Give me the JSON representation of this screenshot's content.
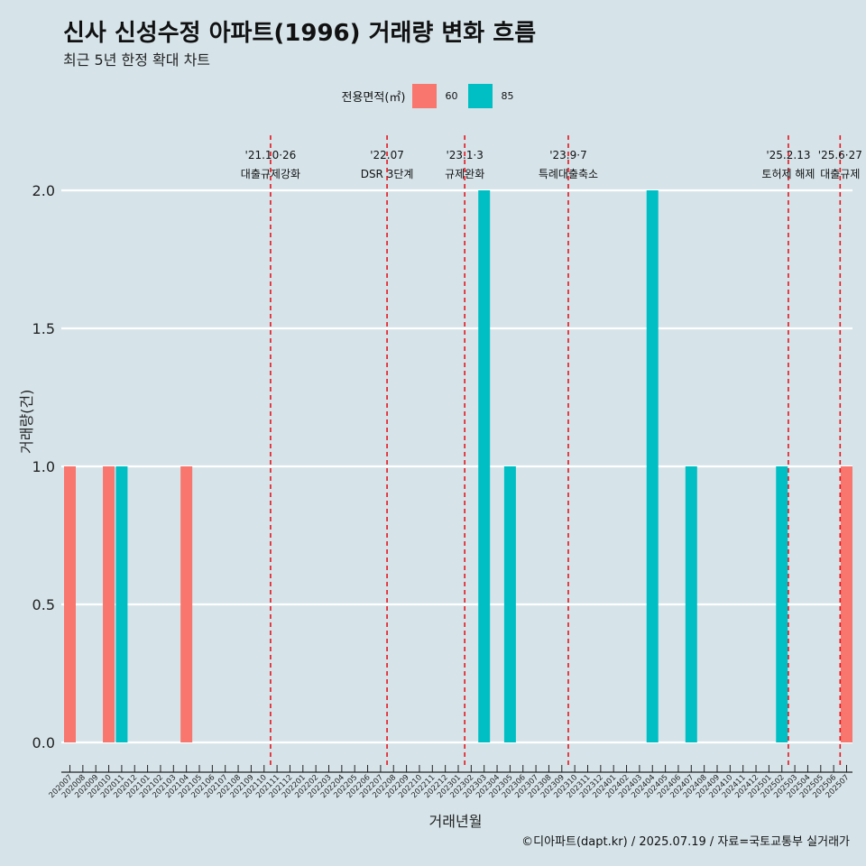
{
  "title": "신사 신성수정 아파트(1996) 거래량 변화 흐름",
  "subtitle": "최근 5년 한정 확대 차트",
  "legend": {
    "title": "전용면적(㎡)",
    "items": [
      {
        "label": "60",
        "color": "#f8766d"
      },
      {
        "label": "85",
        "color": "#00bfc4"
      }
    ]
  },
  "caption": "©디아파트(dapt.kr) / 2025.07.19 / 자료=국토교통부 실거래가",
  "chart_data": {
    "type": "bar",
    "title": "신사 신성수정 아파트(1996) 거래량 변화 흐름",
    "xlabel": "거래년월",
    "ylabel": "거래량(건)",
    "ylim": [
      0,
      2
    ],
    "yticks": [
      "0.0",
      "0.5",
      "1.0",
      "1.5",
      "2.0"
    ],
    "grid": true,
    "legend_position": "top",
    "categories": [
      "202007",
      "202008",
      "202009",
      "202010",
      "202011",
      "202012",
      "202101",
      "202102",
      "202103",
      "202104",
      "202105",
      "202106",
      "202107",
      "202108",
      "202109",
      "202110",
      "202111",
      "202112",
      "202201",
      "202202",
      "202203",
      "202204",
      "202205",
      "202206",
      "202207",
      "202208",
      "202209",
      "202210",
      "202211",
      "202212",
      "202301",
      "202302",
      "202303",
      "202304",
      "202305",
      "202306",
      "202307",
      "202308",
      "202309",
      "202310",
      "202311",
      "202312",
      "202401",
      "202402",
      "202403",
      "202404",
      "202405",
      "202406",
      "202407",
      "202408",
      "202409",
      "202410",
      "202411",
      "202412",
      "202501",
      "202502",
      "202503",
      "202504",
      "202505",
      "202506",
      "202507"
    ],
    "series": [
      {
        "name": "60",
        "color": "#f8766d",
        "points": [
          {
            "x": "202007",
            "y": 1
          },
          {
            "x": "202010",
            "y": 1
          },
          {
            "x": "202104",
            "y": 1
          },
          {
            "x": "202507",
            "y": 1
          }
        ]
      },
      {
        "name": "85",
        "color": "#00bfc4",
        "points": [
          {
            "x": "202011",
            "y": 1
          },
          {
            "x": "202303",
            "y": 2
          },
          {
            "x": "202305",
            "y": 1
          },
          {
            "x": "202404",
            "y": 2
          },
          {
            "x": "202407",
            "y": 1
          },
          {
            "x": "202502",
            "y": 1
          }
        ]
      }
    ],
    "annotations": [
      {
        "x": "202110",
        "date": "'21.10·26",
        "label": "대출규제강화"
      },
      {
        "x": "202207",
        "date": "'22.07",
        "label": "DSR 3단계"
      },
      {
        "x": "202301",
        "date": "'23.1·3",
        "label": "규제완화"
      },
      {
        "x": "202309",
        "date": "'23.9·7",
        "label": "특례대출축소"
      },
      {
        "x": "202502",
        "date": "'25.2.13",
        "label": "토허제 해제"
      },
      {
        "x": "202506",
        "date": "'25.6·27",
        "label": "대출규제"
      }
    ]
  }
}
